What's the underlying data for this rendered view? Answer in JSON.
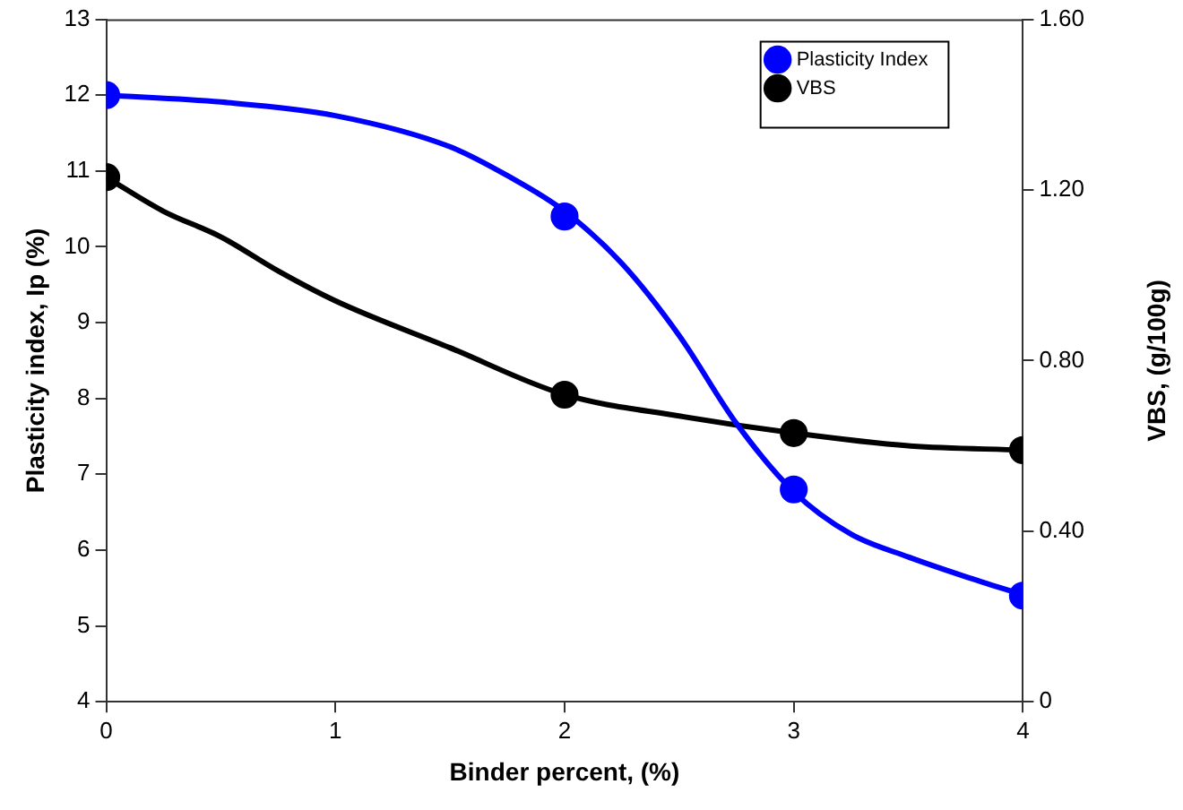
{
  "chart_data": {
    "type": "scatter",
    "xlabel": "Binder percent, (%)",
    "ylabel": "Plasticity index, Ip (%)",
    "y2label": "VBS, (g/100g)",
    "xlim": [
      0,
      4
    ],
    "xticks": [
      0,
      1,
      2,
      3,
      4
    ],
    "ylim": [
      4,
      13
    ],
    "yticks": [
      4,
      5,
      6,
      7,
      8,
      9,
      10,
      11,
      12,
      13
    ],
    "y2lim": [
      0,
      1.6
    ],
    "y2ticks": [
      0,
      {
        "value": 0.4,
        "label": "0.40"
      },
      {
        "value": 0.8,
        "label": "0.80"
      },
      {
        "value": 1.2,
        "label": "1.20"
      },
      {
        "value": 1.6,
        "label": "1.60"
      }
    ],
    "grid": false,
    "legend": "top right",
    "series": [
      {
        "type": "line",
        "color": "#0000ff",
        "marker": "none",
        "line_style": "solid",
        "x": [
          0,
          0.5,
          1,
          1.5,
          1.75,
          2,
          2.25,
          2.5,
          2.75,
          3,
          3.25,
          3.5,
          3.75,
          4
        ],
        "values": [
          12,
          11.91,
          11.73,
          11.32,
          10.94,
          10.47,
          9.78,
          8.83,
          7.67,
          6.77,
          6.21,
          5.91,
          5.65,
          5.41
        ]
      },
      {
        "type": "line",
        "color": "#000000",
        "marker": "none",
        "line_style": "solid",
        "axis": "y2",
        "x": [
          0,
          0.25,
          0.5,
          0.75,
          1,
          1.5,
          2,
          2.5,
          3,
          3.5,
          4
        ],
        "values": [
          1.23,
          1.15,
          1.09,
          1.01,
          0.94,
          0.83,
          0.72,
          0.67,
          0.63,
          0.6,
          0.59
        ]
      },
      {
        "type": "scatter",
        "name": "Plasticity Index",
        "color": "#0000ff",
        "marker": "circle",
        "x": [
          0,
          2,
          3,
          4
        ],
        "values": [
          12,
          10.4,
          6.8,
          5.4
        ]
      },
      {
        "type": "scatter",
        "name": "VBS",
        "color": "#000000",
        "marker": "circle",
        "axis": "y2",
        "x": [
          0,
          2,
          3,
          4
        ],
        "values": [
          1.23,
          0.72,
          0.63,
          0.59
        ]
      }
    ]
  }
}
